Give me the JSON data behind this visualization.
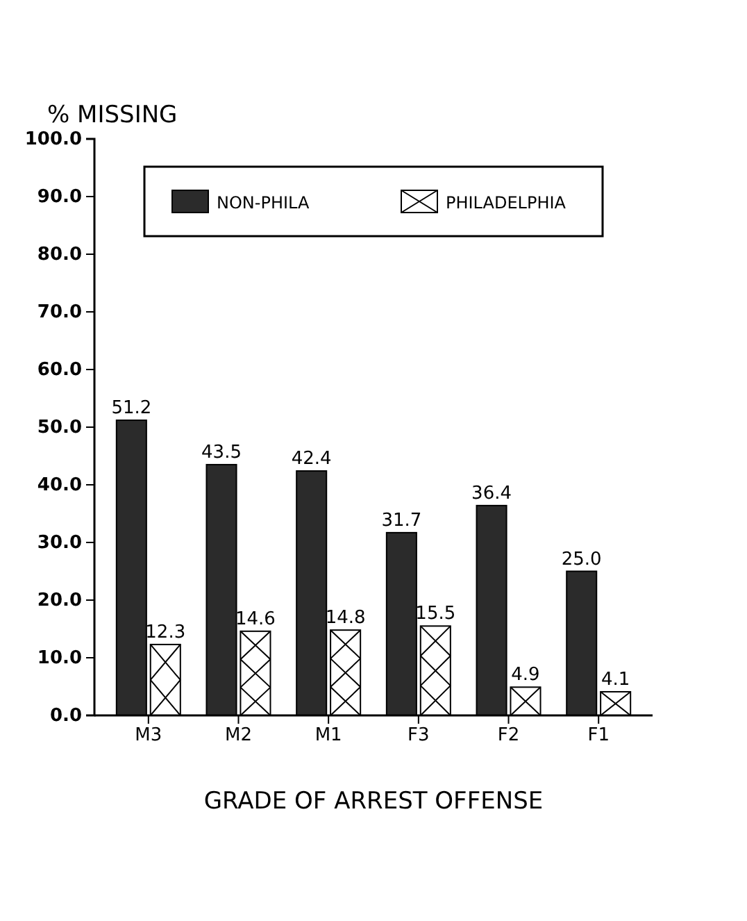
{
  "chart_data": {
    "type": "bar",
    "ylabel": "% MISSING",
    "xlabel": "GRADE OF ARREST OFFENSE",
    "categories": [
      "M3",
      "M2",
      "M1",
      "F3",
      "F2",
      "F1"
    ],
    "series": [
      {
        "name": "NON-PHILA",
        "color": "#2b2b2b",
        "values": [
          51.2,
          43.5,
          42.4,
          31.7,
          36.4,
          25.0
        ],
        "value_labels": [
          "51.2",
          "43.5",
          "42.4",
          "31.7",
          "36.4",
          "25.0"
        ]
      },
      {
        "name": "PHILADELPHIA",
        "color": "#ffffff",
        "values": [
          12.3,
          14.6,
          14.8,
          15.5,
          4.9,
          4.1
        ],
        "value_labels": [
          "12.3",
          "14.6",
          "14.8",
          "15.5",
          "4.9",
          "4.1"
        ]
      }
    ],
    "ylim": [
      0,
      100
    ],
    "yticks": [
      {
        "value": 0,
        "label": "0.0"
      },
      {
        "value": 10,
        "label": "10.0"
      },
      {
        "value": 20,
        "label": "20.0"
      },
      {
        "value": 30,
        "label": "30.0"
      },
      {
        "value": 40,
        "label": "40.0"
      },
      {
        "value": 50,
        "label": "50.0"
      },
      {
        "value": 60,
        "label": "60.0"
      },
      {
        "value": 70,
        "label": "70.0"
      },
      {
        "value": 80,
        "label": "80.0"
      },
      {
        "value": 90,
        "label": "90.0"
      },
      {
        "value": 100,
        "label": "100.0"
      }
    ],
    "legend": "top",
    "grid": false
  }
}
